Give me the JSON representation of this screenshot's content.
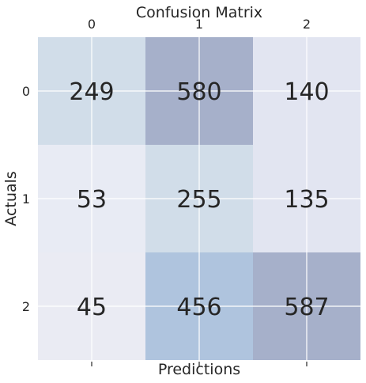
{
  "chart_data": {
    "type": "heatmap",
    "title": "Confusion Matrix",
    "xlabel": "Predictions",
    "ylabel": "Actuals",
    "x_categories": [
      "0",
      "1",
      "2"
    ],
    "y_categories": [
      "0",
      "1",
      "2"
    ],
    "values": [
      [
        249,
        580,
        140
      ],
      [
        53,
        255,
        135
      ],
      [
        45,
        456,
        587
      ]
    ],
    "grid": true,
    "cell_colors": [
      [
        "#d1dde9",
        "#a6b0ca",
        "#e2e5f1"
      ],
      [
        "#e8ebf4",
        "#d1dde9",
        "#e2e5f1"
      ],
      [
        "#eaebf3",
        "#afc4de",
        "#a6b0ca"
      ]
    ],
    "grid_color": "#ffffff",
    "text_color": "#262626"
  }
}
